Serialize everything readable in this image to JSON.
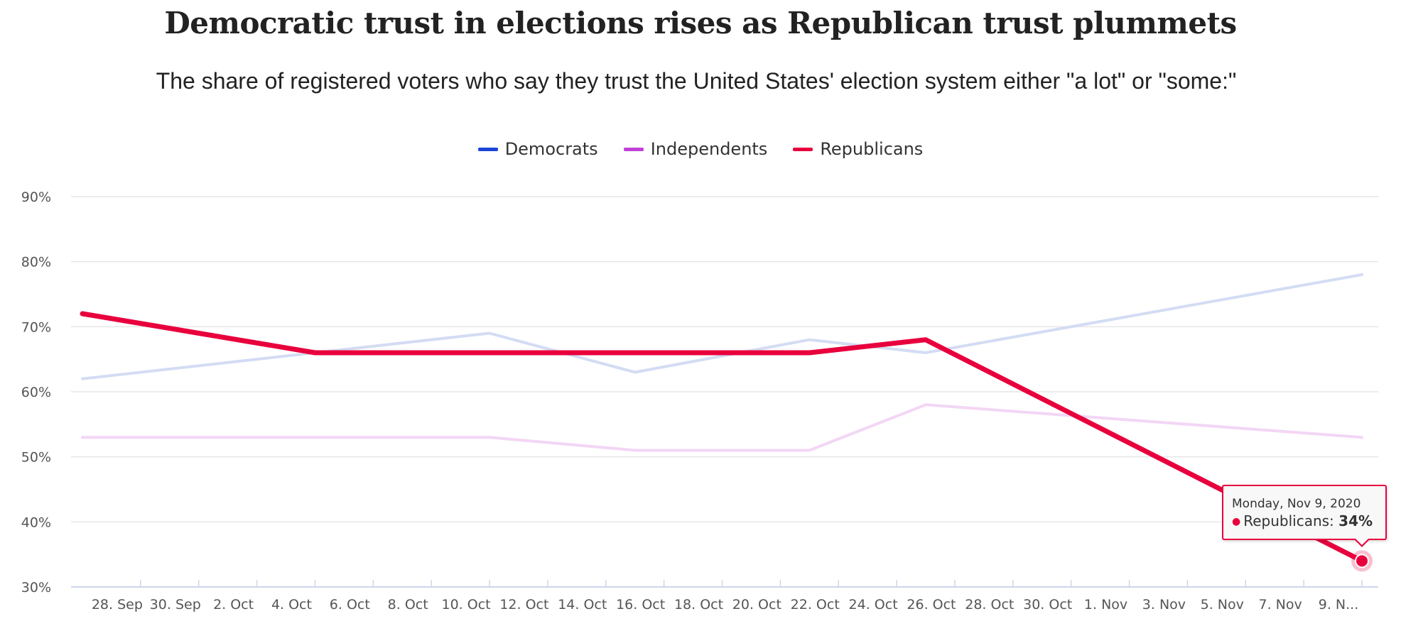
{
  "chart_data": {
    "type": "line",
    "title": "Democratic trust in elections rises as Republican trust plummets",
    "subtitle": "The share of registered voters who say they trust the United States' election system either \"a lot\" or \"some:\"",
    "xlabel": "",
    "ylabel": "",
    "x_tick_labels": [
      "28. Sep",
      "30. Sep",
      "2. Oct",
      "4. Oct",
      "6. Oct",
      "8. Oct",
      "10. Oct",
      "12. Oct",
      "14. Oct",
      "16. Oct",
      "18. Oct",
      "20. Oct",
      "22. Oct",
      "24. Oct",
      "26. Oct",
      "28. Oct",
      "30. Oct",
      "1. Nov",
      "3. Nov",
      "5. Nov",
      "7. Nov",
      "9. N..."
    ],
    "x_tick_dates": [
      "2020-09-28",
      "2020-09-30",
      "2020-10-02",
      "2020-10-04",
      "2020-10-06",
      "2020-10-08",
      "2020-10-10",
      "2020-10-12",
      "2020-10-14",
      "2020-10-16",
      "2020-10-18",
      "2020-10-20",
      "2020-10-22",
      "2020-10-24",
      "2020-10-26",
      "2020-10-28",
      "2020-10-30",
      "2020-11-01",
      "2020-11-03",
      "2020-11-05",
      "2020-11-07",
      "2020-11-09"
    ],
    "y_tick_labels": [
      "30%",
      "40%",
      "50%",
      "60%",
      "70%",
      "80%",
      "90%"
    ],
    "y_ticks": [
      30,
      40,
      50,
      60,
      70,
      80,
      90
    ],
    "ylim": [
      30,
      90
    ],
    "xlim": [
      "2020-09-26",
      "2020-11-09"
    ],
    "grid": true,
    "legend_position": "top-center",
    "series": [
      {
        "name": "Democrats",
        "color": "#1a44d6",
        "faded_color": "#d3dcf3",
        "highlighted": false,
        "x": [
          "2020-09-26",
          "2020-10-04",
          "2020-10-10",
          "2020-10-15",
          "2020-10-21",
          "2020-10-25",
          "2020-11-09"
        ],
        "values": [
          62,
          66,
          69,
          63,
          68,
          66,
          78
        ]
      },
      {
        "name": "Independents",
        "color": "#c040d8",
        "faded_color": "#f3d6f5",
        "highlighted": false,
        "x": [
          "2020-09-26",
          "2020-10-04",
          "2020-10-10",
          "2020-10-15",
          "2020-10-21",
          "2020-10-25",
          "2020-11-09"
        ],
        "values": [
          53,
          53,
          53,
          51,
          51,
          58,
          53
        ]
      },
      {
        "name": "Republicans",
        "color": "#e8003d",
        "faded_color": "#e8003d",
        "highlighted": true,
        "x": [
          "2020-09-26",
          "2020-10-04",
          "2020-10-10",
          "2020-10-15",
          "2020-10-21",
          "2020-10-25",
          "2020-11-09"
        ],
        "values": [
          72,
          66,
          66,
          66,
          66,
          68,
          34
        ]
      }
    ],
    "tooltip": {
      "date_label": "Monday, Nov 9, 2020",
      "series_name": "Republicans",
      "series_label": "Republicans: ",
      "value_label": "34%",
      "x": "2020-11-09",
      "value": 34
    }
  }
}
